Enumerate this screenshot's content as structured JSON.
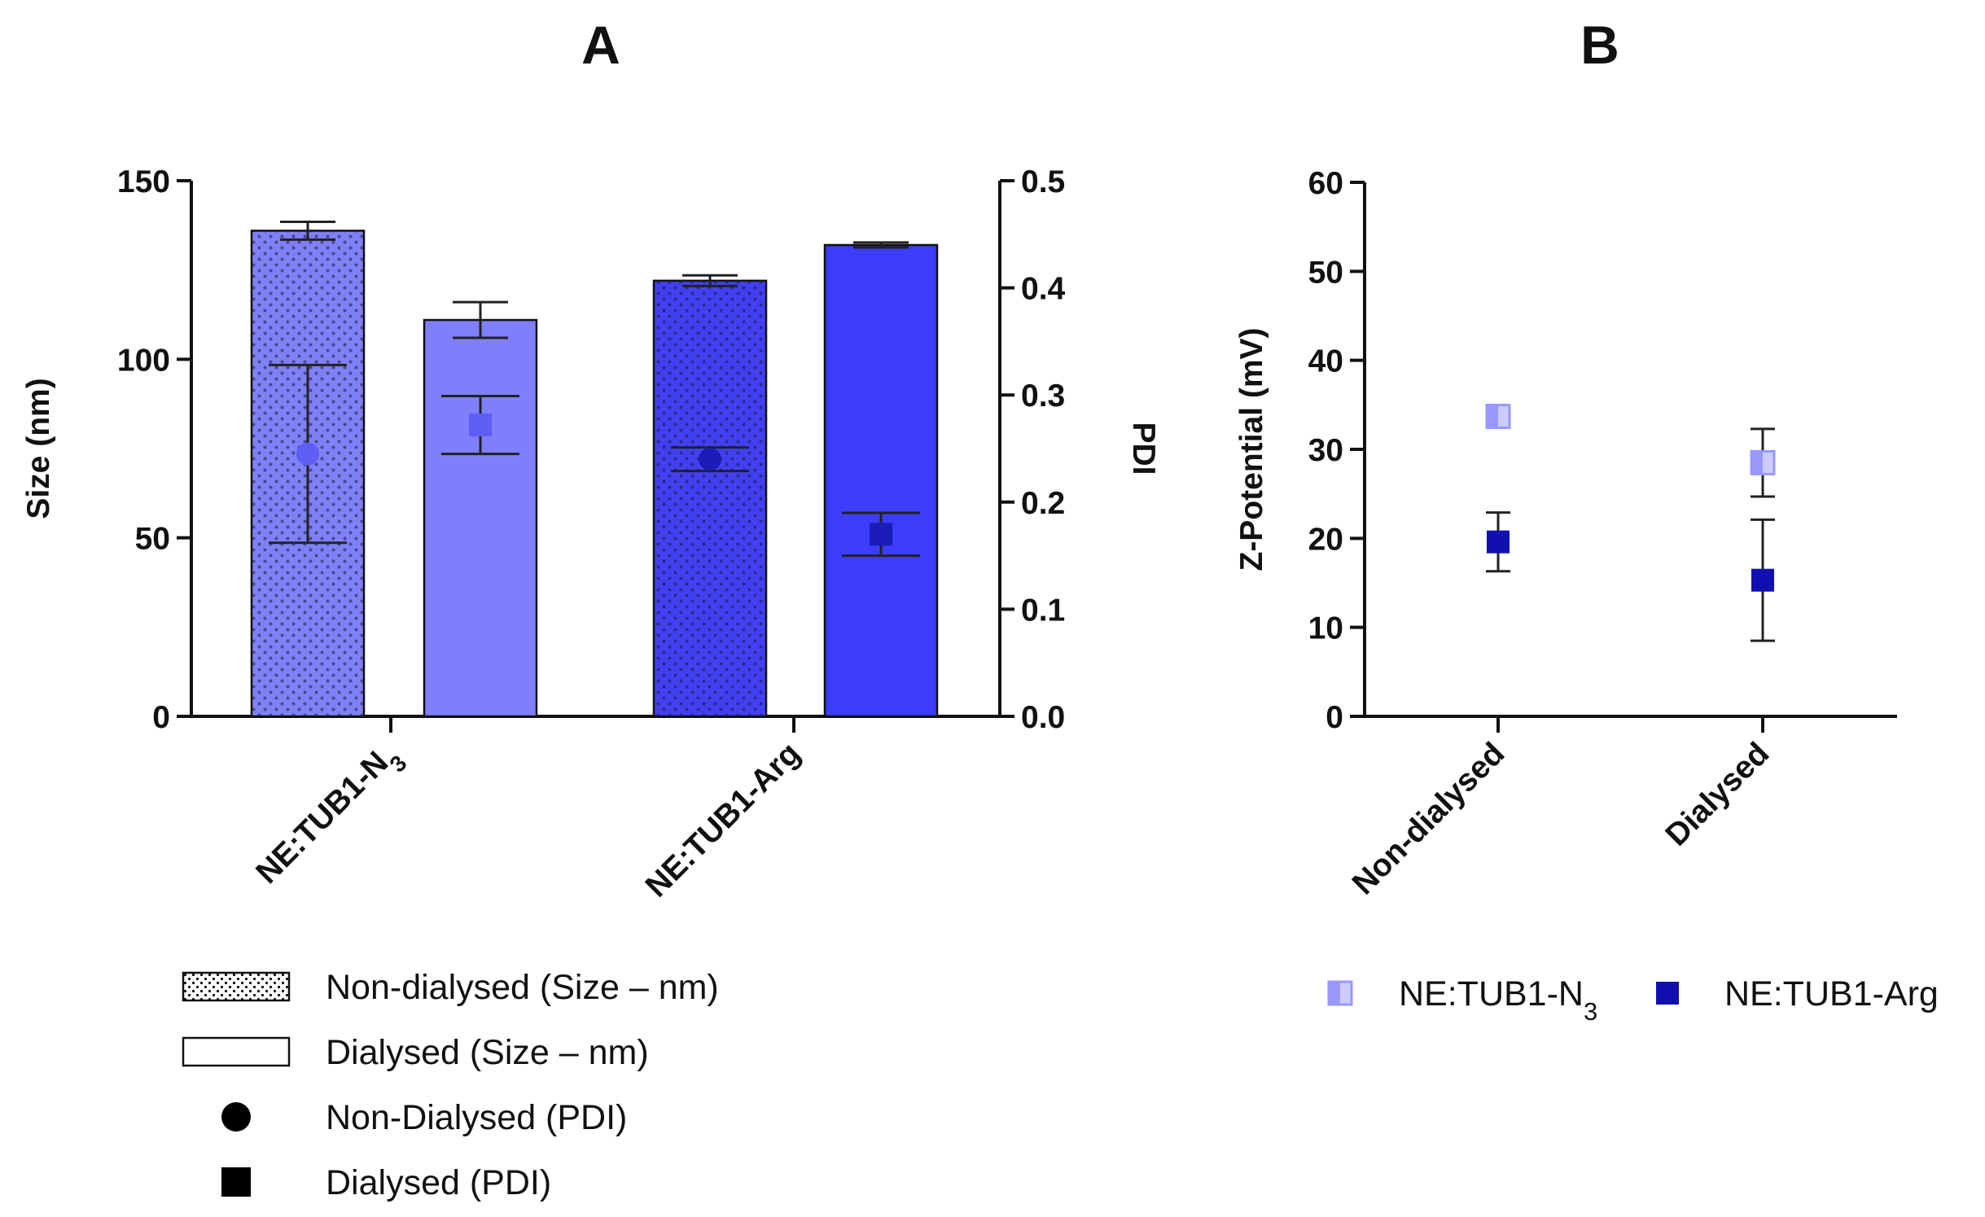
{
  "chart_data": [
    {
      "panel": "A",
      "type": "bar",
      "categories": [
        "NE:TUB1-N",
        "NE:TUB1-Arg"
      ],
      "category_subscripts": [
        "3",
        ""
      ],
      "ylabel": "Size (nm)",
      "ylim": [
        0,
        150
      ],
      "yticks": [
        0,
        50,
        100,
        150
      ],
      "y2label": "PDI",
      "y2lim": [
        0,
        0.5
      ],
      "y2ticks": [
        "0.0",
        "0.1",
        "0.2",
        "0.3",
        "0.4",
        "0.5"
      ],
      "grid": false,
      "series": [
        {
          "name": "Non-dialysed (Size – nm)",
          "kind": "bar",
          "axis": "left",
          "pattern": "dotted",
          "values": [
            136,
            122
          ],
          "errors": [
            2.5,
            1.5
          ],
          "colors": [
            "#8080f6",
            "#4040f0"
          ]
        },
        {
          "name": "Dialysed (Size – nm)",
          "kind": "bar",
          "axis": "left",
          "pattern": "solid",
          "values": [
            111,
            132
          ],
          "errors": [
            5,
            0.7
          ],
          "colors": [
            "#7f7ffc",
            "#3c3cfa"
          ]
        },
        {
          "name": "Non-Dialysed (PDI)",
          "kind": "point",
          "marker": "circle",
          "axis": "right",
          "values": [
            0.245,
            0.24
          ],
          "errors": [
            0.083,
            0.011
          ],
          "colors": [
            "#5e5ef5",
            "#1c1cb8"
          ]
        },
        {
          "name": "Dialysed (PDI)",
          "kind": "point",
          "marker": "square",
          "axis": "right",
          "values": [
            0.272,
            0.17
          ],
          "errors": [
            0.027,
            0.02
          ],
          "colors": [
            "#5e5ef5",
            "#1c1cb8"
          ]
        }
      ],
      "legend_position": "bottom-left"
    },
    {
      "panel": "B",
      "type": "scatter",
      "categories": [
        "Non-dialysed",
        "Dialysed"
      ],
      "ylabel": "Z-Potential (mV)",
      "ylim": [
        0,
        60
      ],
      "yticks": [
        0,
        10,
        20,
        30,
        40,
        50,
        60
      ],
      "grid": false,
      "series": [
        {
          "name": "NE:TUB1-N",
          "name_subscript": "3",
          "marker": "half-filled-square",
          "color": "#9898ff",
          "values": [
            33.7,
            28.5
          ],
          "errors": [
            0.6,
            3.8
          ]
        },
        {
          "name": "NE:TUB1-Arg",
          "marker": "square",
          "color": "#1010b0",
          "values": [
            19.6,
            15.3
          ],
          "errors": [
            3.3,
            6.8
          ]
        }
      ],
      "legend_position": "bottom"
    }
  ]
}
